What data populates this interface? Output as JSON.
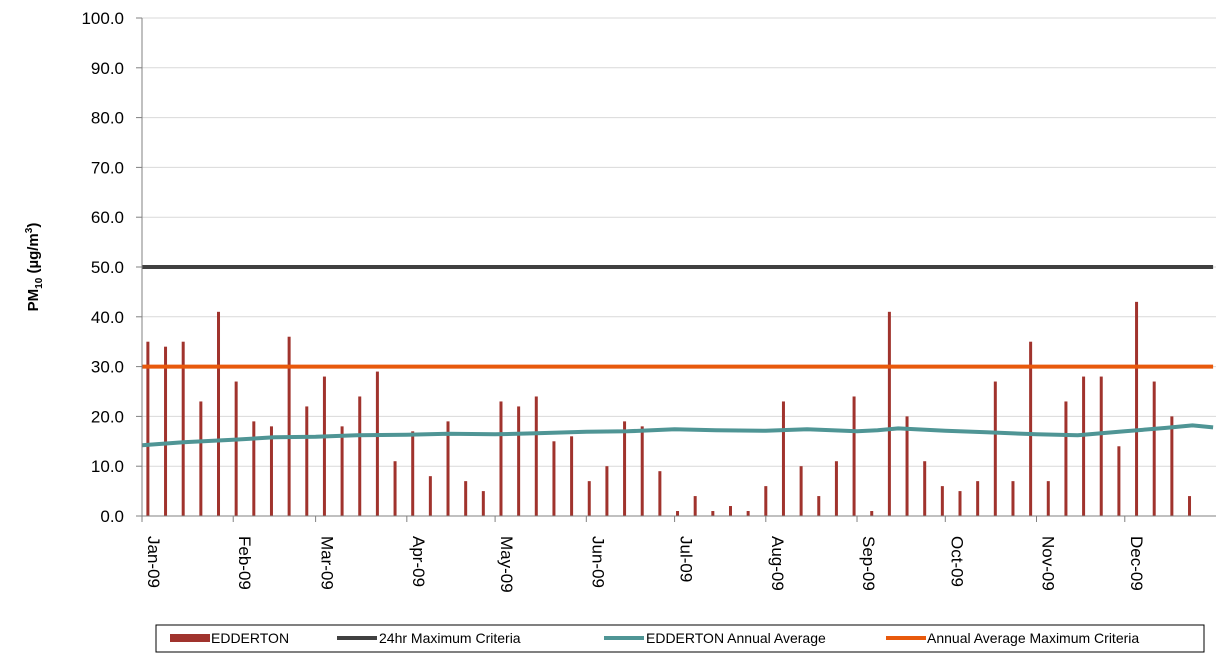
{
  "chart_data": {
    "type": "bar",
    "ylabel": {
      "main": "PM",
      "sub": "10",
      "unit_prefix": " (µg/m",
      "sup": "3",
      "unit_suffix": ")"
    },
    "ylim": [
      0,
      100
    ],
    "yticks": [
      "0.0",
      "10.0",
      "20.0",
      "30.0",
      "40.0",
      "50.0",
      "60.0",
      "70.0",
      "80.0",
      "90.0",
      "100.0"
    ],
    "grid": true,
    "legend_position": "bottom",
    "x_categories": [
      "Jan-09",
      "Feb-09",
      "Mar-09",
      "Apr-09",
      "May-09",
      "Jun-09",
      "Jul-09",
      "Aug-09",
      "Sep-09",
      "Oct-09",
      "Nov-09",
      "Dec-09"
    ],
    "colors": {
      "bars": "#a0332d",
      "criteria_24hr": "#404040",
      "annual_average": "#4f9595",
      "annual_criteria": "#e8590c"
    },
    "series": [
      {
        "name": "EDDERTON",
        "kind": "bar",
        "x": [
          "2009-01-03",
          "2009-01-09",
          "2009-01-15",
          "2009-01-21",
          "2009-01-27",
          "2009-02-02",
          "2009-02-08",
          "2009-02-14",
          "2009-02-20",
          "2009-02-26",
          "2009-03-04",
          "2009-03-10",
          "2009-03-16",
          "2009-03-22",
          "2009-03-28",
          "2009-04-03",
          "2009-04-09",
          "2009-04-15",
          "2009-04-21",
          "2009-04-27",
          "2009-05-03",
          "2009-05-09",
          "2009-05-15",
          "2009-05-21",
          "2009-05-27",
          "2009-06-02",
          "2009-06-08",
          "2009-06-14",
          "2009-06-20",
          "2009-06-26",
          "2009-07-02",
          "2009-07-08",
          "2009-07-14",
          "2009-07-20",
          "2009-07-26",
          "2009-08-01",
          "2009-08-07",
          "2009-08-13",
          "2009-08-19",
          "2009-08-25",
          "2009-08-31",
          "2009-09-06",
          "2009-09-12",
          "2009-09-18",
          "2009-09-24",
          "2009-09-30",
          "2009-10-06",
          "2009-10-12",
          "2009-10-18",
          "2009-10-24",
          "2009-10-30",
          "2009-11-05",
          "2009-11-11",
          "2009-11-17",
          "2009-11-23",
          "2009-11-29",
          "2009-12-05",
          "2009-12-11",
          "2009-12-17",
          "2009-12-23",
          "2009-12-29"
        ],
        "values": [
          35,
          34,
          35,
          23,
          41,
          27,
          19,
          18,
          36,
          22,
          28,
          18,
          24,
          29,
          11,
          17,
          8,
          19,
          7,
          5,
          23,
          22,
          24,
          15,
          16,
          7,
          10,
          19,
          18,
          9,
          1,
          4,
          1,
          2,
          1,
          6,
          23,
          10,
          4,
          11,
          24,
          1,
          41,
          20,
          11,
          6,
          5,
          7,
          27,
          7,
          35,
          7,
          23,
          28,
          28,
          14,
          43,
          27,
          20,
          4,
          null
        ]
      },
      {
        "name": "24hr Maximum Criteria",
        "kind": "line",
        "x": [
          "2009-01-01",
          "2009-12-31"
        ],
        "values": [
          50,
          50
        ]
      },
      {
        "name": "EDDERTON Annual Average",
        "kind": "line",
        "x": [
          "2009-01-01",
          "2009-01-15",
          "2009-02-01",
          "2009-02-15",
          "2009-03-01",
          "2009-03-15",
          "2009-04-01",
          "2009-04-15",
          "2009-05-01",
          "2009-05-15",
          "2009-06-01",
          "2009-06-15",
          "2009-07-01",
          "2009-07-15",
          "2009-08-01",
          "2009-08-15",
          "2009-09-01",
          "2009-09-08",
          "2009-09-15",
          "2009-10-01",
          "2009-10-15",
          "2009-11-01",
          "2009-11-15",
          "2009-12-01",
          "2009-12-15",
          "2009-12-24",
          "2009-12-31"
        ],
        "values": [
          14.2,
          14.8,
          15.3,
          15.8,
          15.9,
          16.2,
          16.3,
          16.5,
          16.4,
          16.6,
          16.9,
          17.0,
          17.4,
          17.2,
          17.1,
          17.4,
          17.0,
          17.2,
          17.6,
          17.1,
          16.8,
          16.4,
          16.2,
          17.0,
          17.7,
          18.2,
          17.8
        ]
      },
      {
        "name": "Annual Average Maximum Criteria",
        "kind": "line",
        "x": [
          "2009-01-01",
          "2009-12-31"
        ],
        "values": [
          30,
          30
        ]
      }
    ]
  }
}
